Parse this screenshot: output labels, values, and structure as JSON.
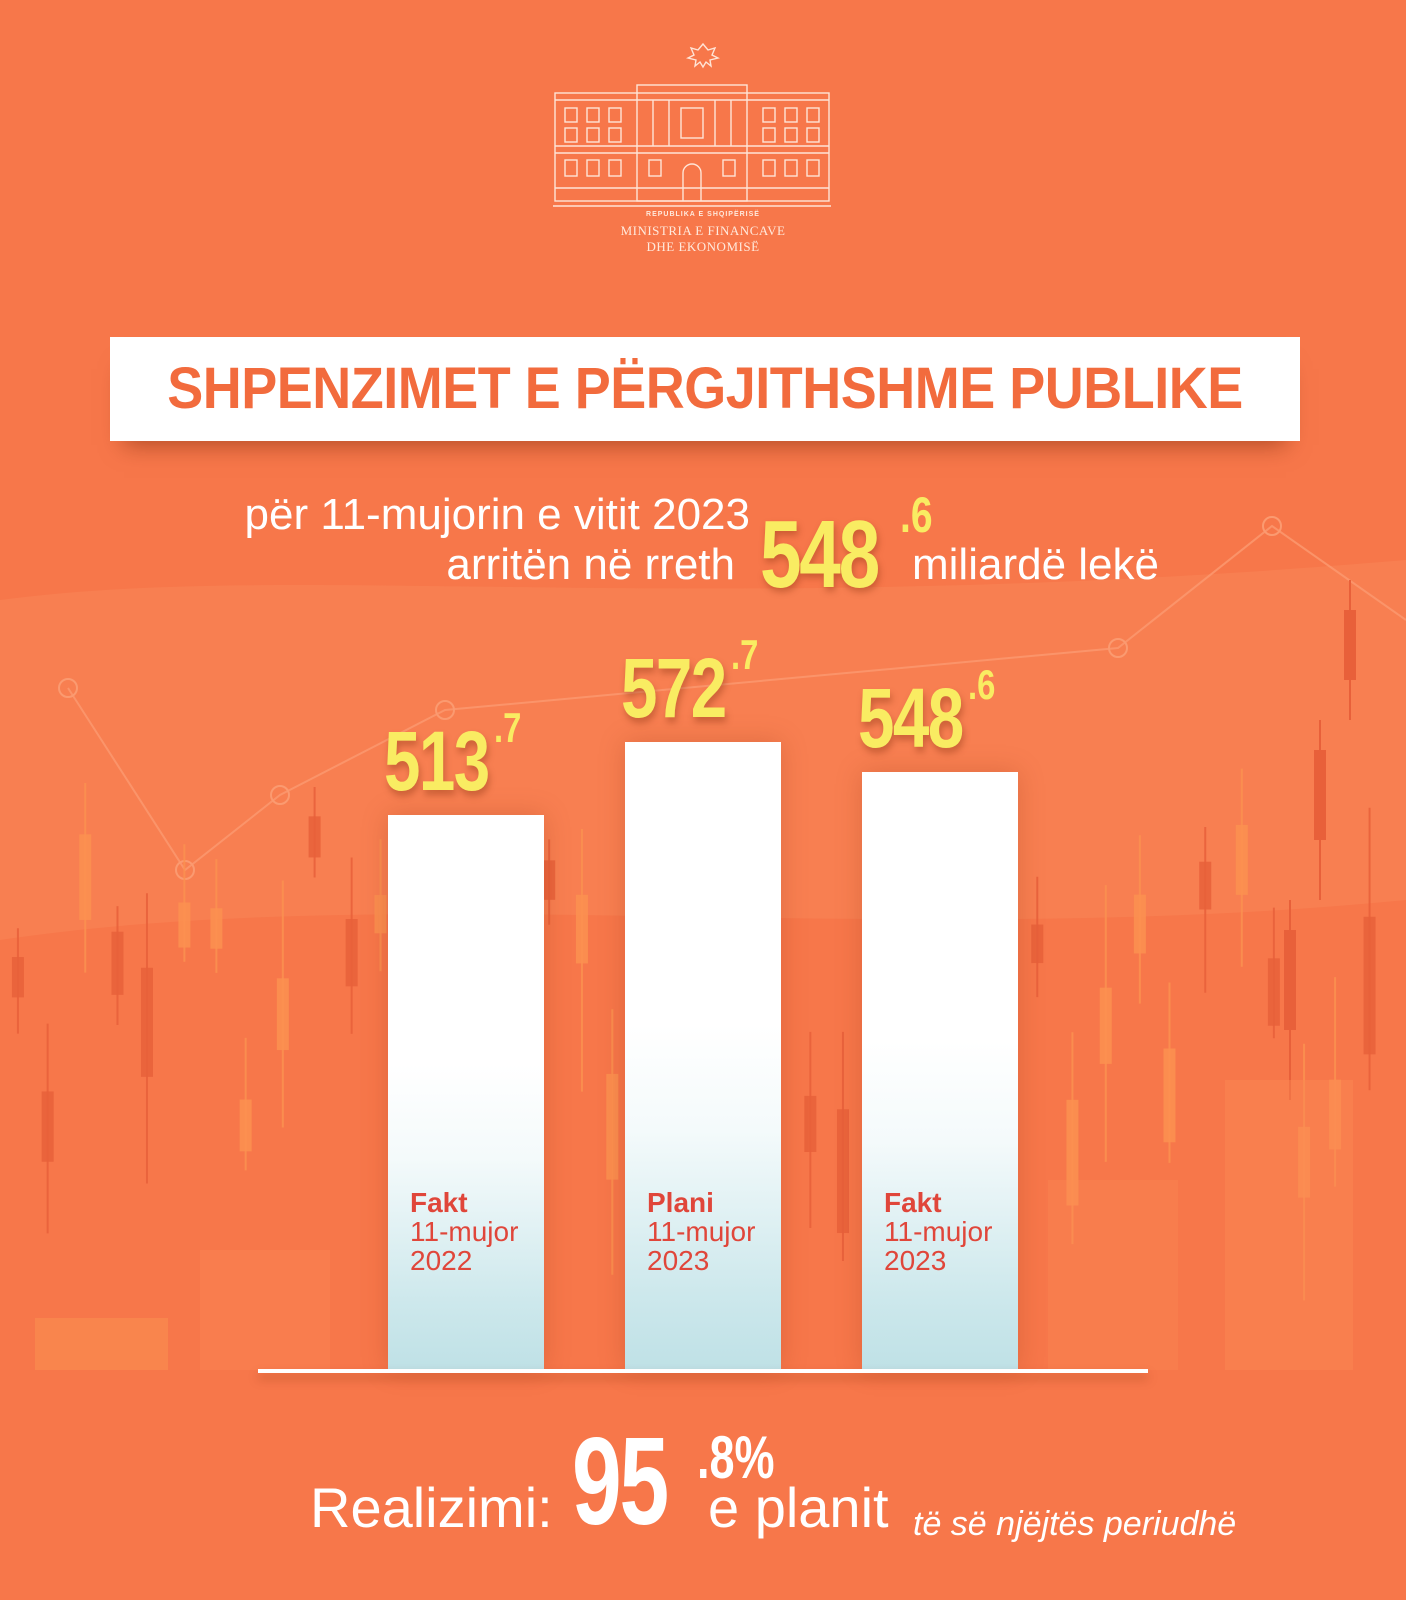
{
  "header": {
    "country": "REPUBLIKA E SHQIPËRISË",
    "ministry_line1": "MINISTRIA E FINANCAVE",
    "ministry_line2": "DHE EKONOMISË"
  },
  "colors": {
    "background": "#f7774a",
    "accent_yellow": "#f9ec62",
    "title_red": "#f26b3d",
    "label_red": "#e0463a"
  },
  "subtitle": {
    "line1": "për 11-mujorin e vitit 2023",
    "line2": "arritën në rreth",
    "amount_int": "548",
    "amount_dec": ".6",
    "unit": "miliardë lekë"
  },
  "footer": {
    "label": "Realizimi:",
    "percent_int": "95",
    "percent_dec": ".8%",
    "plan_text": "e planit",
    "note": "të së njëjtës periudhë"
  },
  "chart_data": {
    "type": "bar",
    "title": "SHPENZIMET E PËRGJITHSHME PUBLIKE",
    "ylim": [
      0,
      600
    ],
    "grid": false,
    "bars": [
      {
        "value": 513.7,
        "value_int": "513",
        "value_dec": ".7",
        "label1": "Fakt",
        "label2": "11-mujor",
        "label3": "2022"
      },
      {
        "value": 572.7,
        "value_int": "572",
        "value_dec": ".7",
        "label1": "Plani",
        "label2": "11-mujor",
        "label3": "2023"
      },
      {
        "value": 548.6,
        "value_int": "548",
        "value_dec": ".6",
        "label1": "Fakt",
        "label2": "11-mujor",
        "label3": "2023"
      }
    ]
  }
}
